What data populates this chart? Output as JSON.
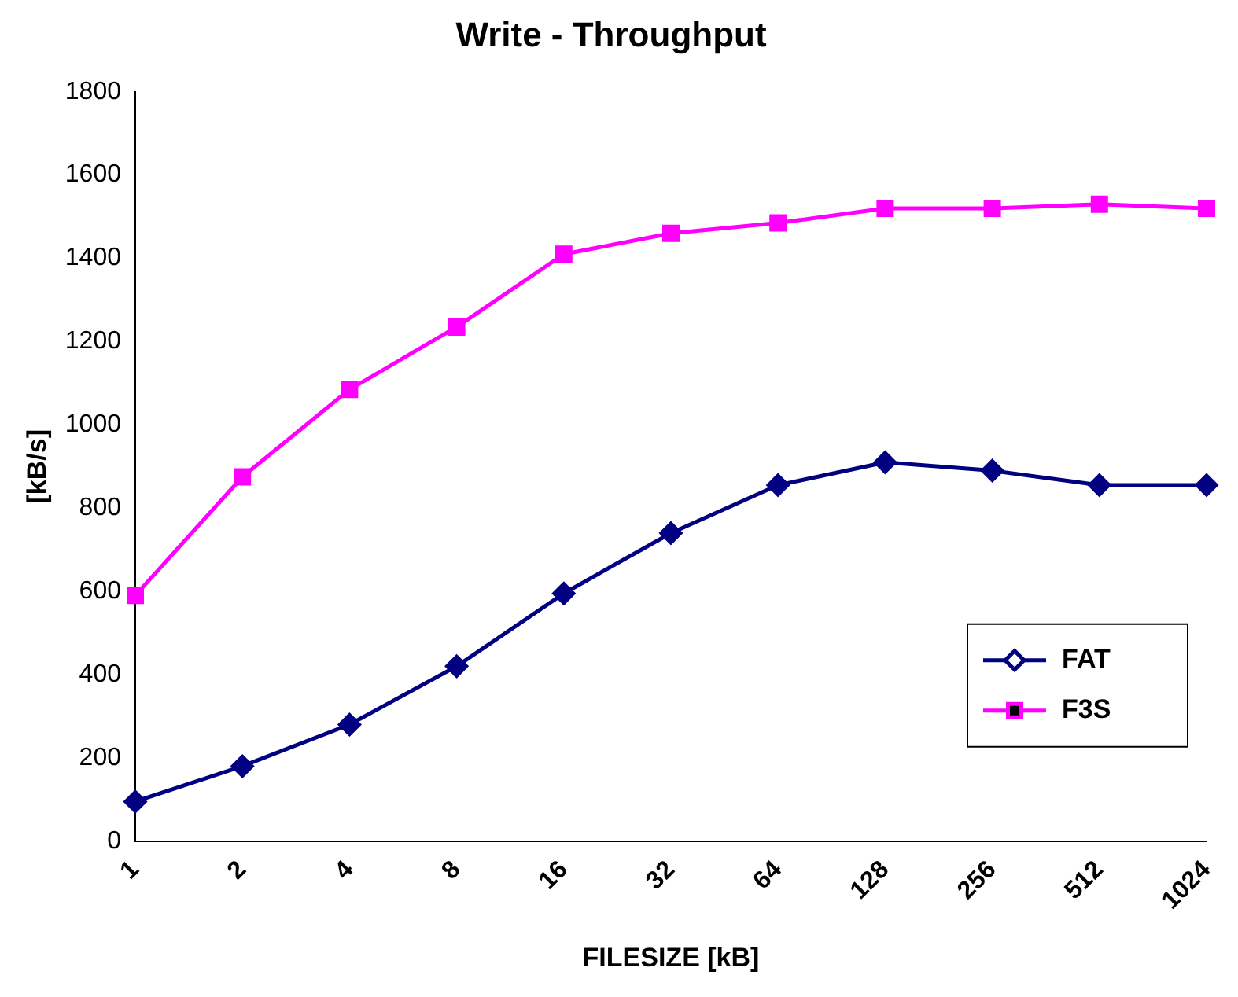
{
  "chart_data": {
    "type": "line",
    "title": "Write - Throughput",
    "xlabel": "FILESIZE [kB]",
    "ylabel": "[kB/s]",
    "categories": [
      "1",
      "2",
      "4",
      "8",
      "16",
      "32",
      "64",
      "128",
      "256",
      "512",
      "1024"
    ],
    "series": [
      {
        "name": "FAT",
        "color": "#000080",
        "marker": "diamond",
        "values": [
          95,
          180,
          280,
          420,
          595,
          740,
          855,
          910,
          890,
          855,
          855
        ]
      },
      {
        "name": "F3S",
        "color": "#ff00ff",
        "marker": "square",
        "values": [
          590,
          875,
          1085,
          1235,
          1410,
          1460,
          1485,
          1520,
          1520,
          1530,
          1520
        ]
      }
    ],
    "ylim": [
      0,
      1800
    ],
    "yticks": [
      0,
      200,
      400,
      600,
      800,
      1000,
      1200,
      1400,
      1600,
      1800
    ],
    "grid": false,
    "legend": "bottom right",
    "line_style": "solid"
  }
}
